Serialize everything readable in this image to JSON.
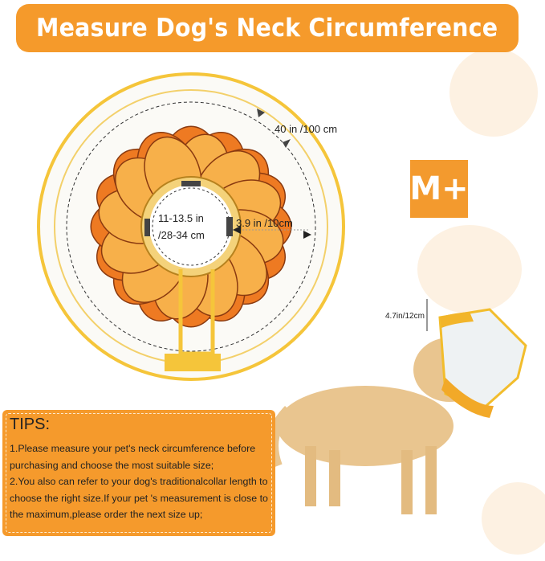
{
  "banner": {
    "title": "Measure Dog's Neck Circumference"
  },
  "size_badge": "M+",
  "measurements": {
    "outer_circumference": "40 in /100 cm",
    "neck_line1": "11-13.5 in",
    "neck_line2": "/28-34 cm",
    "width": "3.9 in /10cm",
    "depth": "4.7in/12cm"
  },
  "tips": {
    "title": "TIPS:",
    "items": [
      "1.Please measure your pet's neck circumference before purchasing and choose the most suitable size;",
      "2.You also can refer to your dog's traditionalcollar length to choose the right size.If your pet 's measurement is close to the maximum,please order the next size up;"
    ]
  },
  "colors": {
    "accent": "#f59a2b",
    "petal_light": "#f7b04a",
    "petal_dark": "#ee7a22",
    "rim": "#f5c53a"
  }
}
